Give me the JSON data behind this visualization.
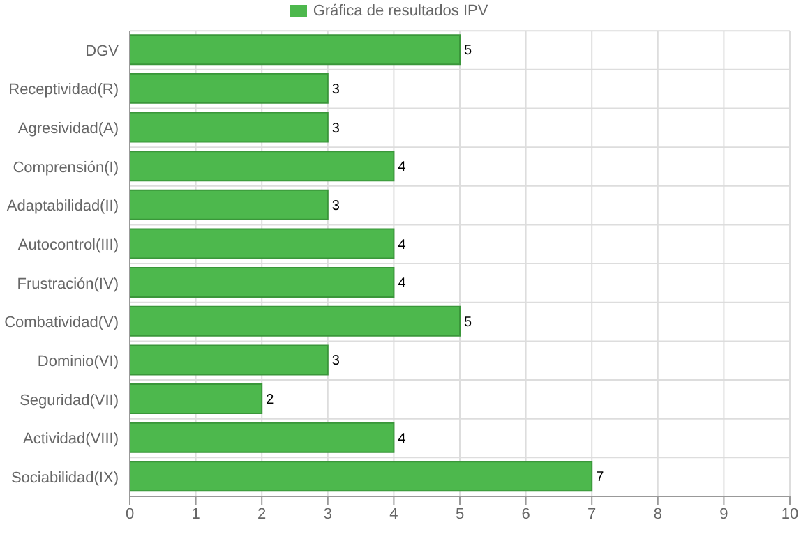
{
  "chart_data": {
    "type": "bar",
    "orientation": "horizontal",
    "categories": [
      "DGV",
      "Receptividad(R)",
      "Agresividad(A)",
      "Comprensión(I)",
      "Adaptabilidad(II)",
      "Autocontrol(III)",
      "Frustración(IV)",
      "Combatividad(V)",
      "Dominio(VI)",
      "Seguridad(VII)",
      "Actividad(VIII)",
      "Sociabilidad(IX)"
    ],
    "series": [
      {
        "name": "Gráfica de resultados IPV",
        "color": "#4db84d",
        "values": [
          5,
          3,
          3,
          4,
          3,
          4,
          4,
          5,
          3,
          2,
          4,
          7
        ]
      }
    ],
    "xlim": [
      0,
      10
    ],
    "xticks": [
      0,
      1,
      2,
      3,
      4,
      5,
      6,
      7,
      8,
      9,
      10
    ],
    "grid": true,
    "legend": "top",
    "data_labels": true
  }
}
